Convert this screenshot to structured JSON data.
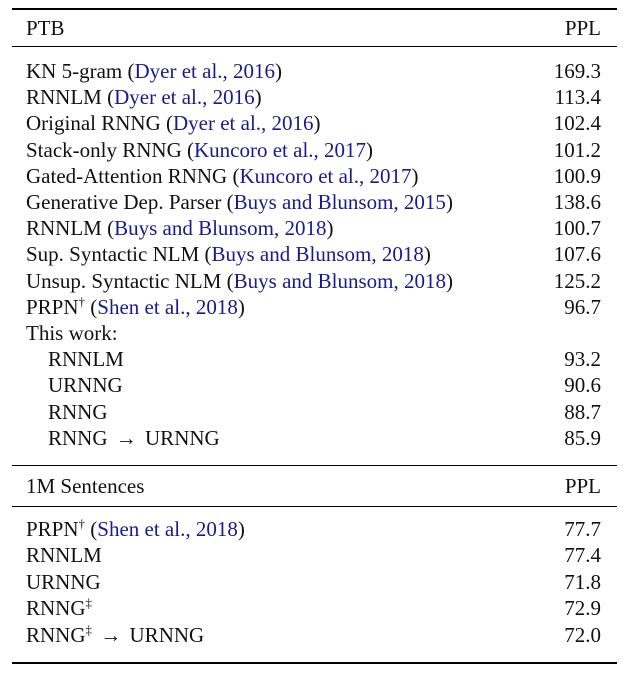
{
  "sections": [
    {
      "header": {
        "label": "PTB",
        "value": "PPL"
      },
      "rows": [
        {
          "name": "KN 5-gram",
          "sup": "",
          "arrow": "",
          "target": "",
          "cite": "Dyer et al., 2016",
          "value": "169.3",
          "indent": false
        },
        {
          "name": "RNNLM",
          "sup": "",
          "arrow": "",
          "target": "",
          "cite": "Dyer et al., 2016",
          "value": "113.4",
          "indent": false
        },
        {
          "name": "Original RNNG",
          "sup": "",
          "arrow": "",
          "target": "",
          "cite": "Dyer et al., 2016",
          "value": "102.4",
          "indent": false
        },
        {
          "name": "Stack-only RNNG",
          "sup": "",
          "arrow": "",
          "target": "",
          "cite": "Kuncoro et al., 2017",
          "value": "101.2",
          "indent": false
        },
        {
          "name": "Gated-Attention RNNG",
          "sup": "",
          "arrow": "",
          "target": "",
          "cite": "Kuncoro et al., 2017",
          "value": "100.9",
          "indent": false
        },
        {
          "name": "Generative Dep. Parser",
          "sup": "",
          "arrow": "",
          "target": "",
          "cite": "Buys and Blunsom, 2015",
          "value": "138.6",
          "indent": false
        },
        {
          "name": "RNNLM",
          "sup": "",
          "arrow": "",
          "target": "",
          "cite": "Buys and Blunsom, 2018",
          "value": "100.7",
          "indent": false
        },
        {
          "name": "Sup. Syntactic NLM",
          "sup": "",
          "arrow": "",
          "target": "",
          "cite": "Buys and Blunsom, 2018",
          "value": "107.6",
          "indent": false
        },
        {
          "name": "Unsup. Syntactic NLM",
          "sup": "",
          "arrow": "",
          "target": "",
          "cite": "Buys and Blunsom, 2018",
          "value": "125.2",
          "indent": false
        },
        {
          "name": "PRPN",
          "sup": "†",
          "arrow": "",
          "target": "",
          "cite": "Shen et al., 2018",
          "value": "96.7",
          "indent": false
        },
        {
          "name": "This work:",
          "sup": "",
          "arrow": "",
          "target": "",
          "cite": "",
          "value": "",
          "indent": false
        },
        {
          "name": "RNNLM",
          "sup": "",
          "arrow": "",
          "target": "",
          "cite": "",
          "value": "93.2",
          "indent": true
        },
        {
          "name": "URNNG",
          "sup": "",
          "arrow": "",
          "target": "",
          "cite": "",
          "value": "90.6",
          "indent": true
        },
        {
          "name": "RNNG",
          "sup": "",
          "arrow": "",
          "target": "",
          "cite": "",
          "value": "88.7",
          "indent": true
        },
        {
          "name": "RNNG",
          "sup": "",
          "arrow": "→",
          "target": "URNNG",
          "cite": "",
          "value": "85.9",
          "indent": true
        }
      ]
    },
    {
      "header": {
        "label": "1M Sentences",
        "value": "PPL"
      },
      "rows": [
        {
          "name": "PRPN",
          "sup": "†",
          "arrow": "",
          "target": "",
          "cite": "Shen et al., 2018",
          "value": "77.7",
          "indent": false
        },
        {
          "name": "RNNLM",
          "sup": "",
          "arrow": "",
          "target": "",
          "cite": "",
          "value": "77.4",
          "indent": false
        },
        {
          "name": "URNNG",
          "sup": "",
          "arrow": "",
          "target": "",
          "cite": "",
          "value": "71.8",
          "indent": false
        },
        {
          "name": "RNNG",
          "sup": "‡",
          "arrow": "",
          "target": "",
          "cite": "",
          "value": "72.9",
          "indent": false
        },
        {
          "name": "RNNG",
          "sup": "‡",
          "arrow": "→",
          "target": "URNNG",
          "cite": "",
          "value": "72.0",
          "indent": false
        }
      ]
    }
  ],
  "colors": {
    "citation": "#1a1a8c",
    "text": "#111111",
    "rule": "#000000"
  }
}
